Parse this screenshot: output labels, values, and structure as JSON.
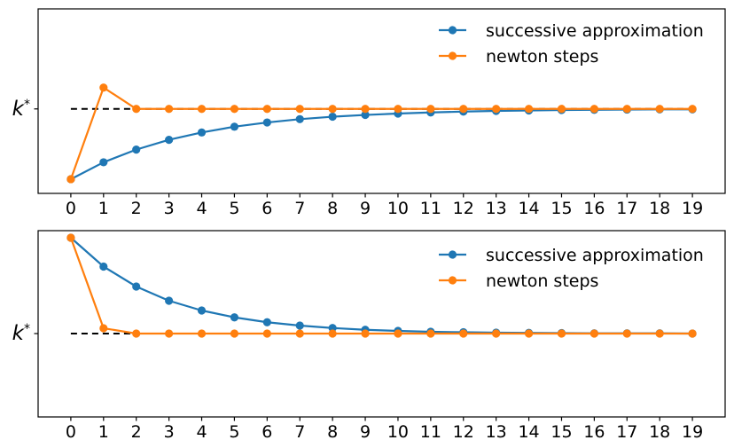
{
  "figure": {
    "background_color": "#ffffff",
    "accent_colors": {
      "blue": "#1f77b4",
      "orange": "#ff7f0e",
      "reference": "#000000"
    }
  },
  "chart_data": [
    {
      "type": "line",
      "title": "",
      "xlabel": "",
      "ylabel_base": "k",
      "ylabel_sup": "*",
      "x": [
        0,
        1,
        2,
        3,
        4,
        5,
        6,
        7,
        8,
        9,
        10,
        11,
        12,
        13,
        14,
        15,
        16,
        17,
        18,
        19
      ],
      "x_tick_labels": [
        "0",
        "1",
        "2",
        "3",
        "4",
        "5",
        "6",
        "7",
        "8",
        "9",
        "10",
        "11",
        "12",
        "13",
        "14",
        "15",
        "16",
        "17",
        "18",
        "19"
      ],
      "series": [
        {
          "name": "successive approximation",
          "color": "#1f77b4",
          "marker": "circle",
          "values": [
            0.684,
            0.76,
            0.817,
            0.861,
            0.894,
            0.92,
            0.939,
            0.954,
            0.965,
            0.973,
            0.979,
            0.984,
            0.988,
            0.991,
            0.993,
            0.995,
            0.996,
            0.997,
            0.998,
            0.998
          ]
        },
        {
          "name": "newton steps",
          "color": "#ff7f0e",
          "marker": "circle",
          "values": [
            0.684,
            1.096,
            1.0,
            1.0,
            1.0,
            1.0,
            1.0,
            1.0,
            1.0,
            1.0,
            1.0,
            1.0,
            1.0,
            1.0,
            1.0,
            1.0,
            1.0,
            1.0,
            1.0,
            1.0
          ]
        }
      ],
      "reference_line": {
        "label": "k*",
        "value": 1.0,
        "color": "#000000",
        "style": "dashed",
        "x_start": 0,
        "x_end": 19
      },
      "xlim": [
        -1,
        20
      ],
      "ylim": [
        0.62,
        1.45
      ],
      "grid": false,
      "legend_position": "upper right",
      "units_note": "y-axis has no numeric ticks; values normalized so that k* = 1"
    },
    {
      "type": "line",
      "title": "",
      "xlabel": "",
      "ylabel_base": "k",
      "ylabel_sup": "*",
      "x": [
        0,
        1,
        2,
        3,
        4,
        5,
        6,
        7,
        8,
        9,
        10,
        11,
        12,
        13,
        14,
        15,
        16,
        17,
        18,
        19
      ],
      "x_tick_labels": [
        "0",
        "1",
        "2",
        "3",
        "4",
        "5",
        "6",
        "7",
        "8",
        "9",
        "10",
        "11",
        "12",
        "13",
        "14",
        "15",
        "16",
        "17",
        "18",
        "19"
      ],
      "series": [
        {
          "name": "successive approximation",
          "color": "#1f77b4",
          "marker": "circle",
          "values": [
            1.432,
            1.302,
            1.212,
            1.148,
            1.104,
            1.073,
            1.051,
            1.036,
            1.025,
            1.017,
            1.012,
            1.008,
            1.006,
            1.004,
            1.003,
            1.002,
            1.001,
            1.001,
            1.001,
            1.0
          ]
        },
        {
          "name": "newton steps",
          "color": "#ff7f0e",
          "marker": "circle",
          "values": [
            1.432,
            1.024,
            1.0,
            1.0,
            1.0,
            1.0,
            1.0,
            1.0,
            1.0,
            1.0,
            1.0,
            1.0,
            1.0,
            1.0,
            1.0,
            1.0,
            1.0,
            1.0,
            1.0,
            1.0
          ]
        }
      ],
      "reference_line": {
        "label": "k*",
        "value": 1.0,
        "color": "#000000",
        "style": "dashed",
        "x_start": 0,
        "x_end": 19
      },
      "xlim": [
        -1,
        20
      ],
      "ylim": [
        0.624,
        1.464
      ],
      "grid": false,
      "legend_position": "upper right",
      "units_note": "y-axis has no numeric ticks; values normalized so that k* = 1"
    }
  ]
}
